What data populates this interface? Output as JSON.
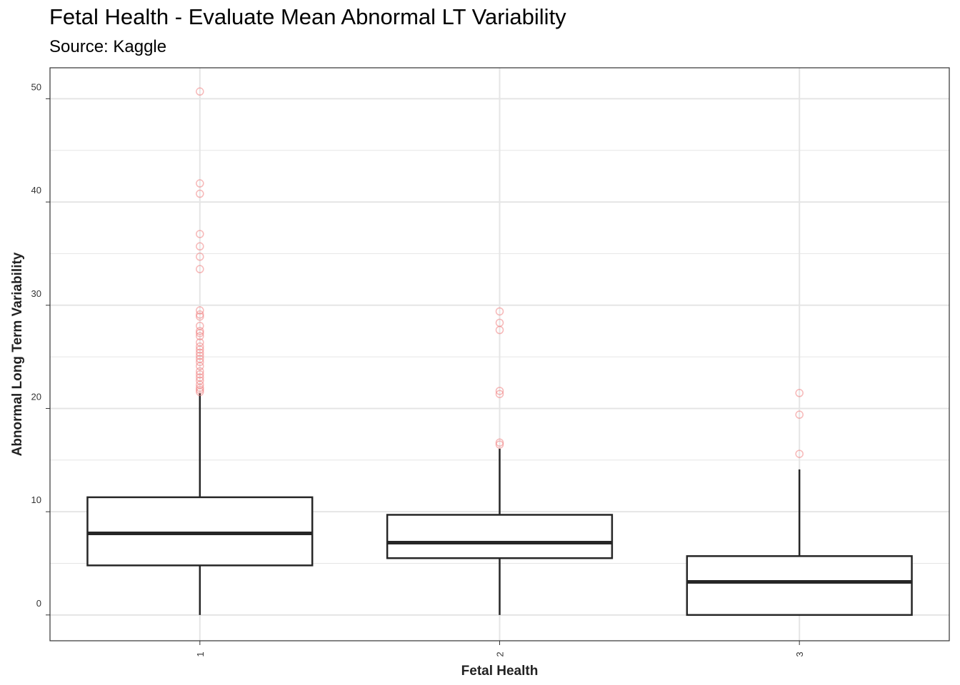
{
  "chart_data": {
    "type": "box",
    "title": "Fetal Health - Evaluate Mean Abnormal LT Variability",
    "subtitle": "Source: Kaggle",
    "xlabel": "Fetal Health",
    "ylabel": "Abnormal Long Term Variability",
    "ylim": [
      -2.5,
      53
    ],
    "y_ticks": [
      0,
      10,
      20,
      30,
      40,
      50
    ],
    "categories": [
      "1",
      "2",
      "3"
    ],
    "grid": true,
    "outlier_color": "#f08080",
    "box_color": "#262626",
    "boxes": [
      {
        "category": "1",
        "min": 0,
        "q1": 4.8,
        "median": 7.9,
        "q3": 11.4,
        "max": 21.5,
        "outliers": [
          50.7,
          41.8,
          40.8,
          36.9,
          35.7,
          34.7,
          33.5,
          29.5,
          29.1,
          28.9,
          28.0,
          27.5,
          27.3,
          27.0,
          26.4,
          26.0,
          25.7,
          25.4,
          25.1,
          24.8,
          24.5,
          24.1,
          23.6,
          23.3,
          23.0,
          22.7,
          22.3,
          22.0,
          21.8,
          21.6
        ]
      },
      {
        "category": "2",
        "min": 0,
        "q1": 5.5,
        "median": 7.0,
        "q3": 9.7,
        "max": 16.1,
        "outliers": [
          29.4,
          28.3,
          27.6,
          21.7,
          21.4,
          16.7,
          16.5
        ]
      },
      {
        "category": "3",
        "min": 0,
        "q1": 0,
        "median": 3.2,
        "q3": 5.7,
        "max": 14.1,
        "outliers": [
          21.5,
          19.4,
          15.6
        ]
      }
    ]
  }
}
